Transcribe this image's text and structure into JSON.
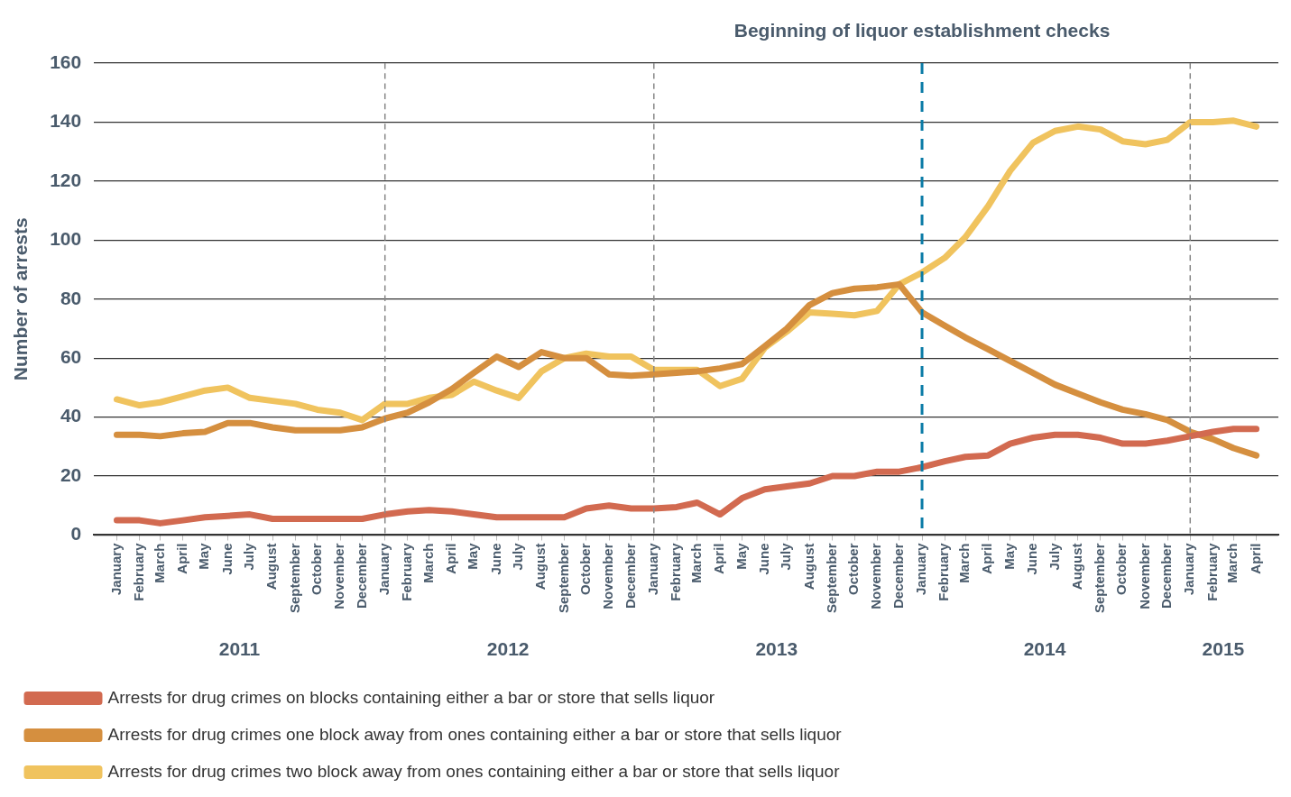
{
  "chart_data": {
    "type": "line",
    "ylabel": "Number of arrests",
    "x": [
      "2011-01",
      "2011-02",
      "2011-03",
      "2011-04",
      "2011-05",
      "2011-06",
      "2011-07",
      "2011-08",
      "2011-09",
      "2011-10",
      "2011-11",
      "2011-12",
      "2012-01",
      "2012-02",
      "2012-03",
      "2012-04",
      "2012-05",
      "2012-06",
      "2012-07",
      "2012-08",
      "2012-09",
      "2012-10",
      "2012-11",
      "2012-12",
      "2013-01",
      "2013-02",
      "2013-03",
      "2013-04",
      "2013-05",
      "2013-06",
      "2013-07",
      "2013-08",
      "2013-09",
      "2013-10",
      "2013-11",
      "2013-12",
      "2014-01",
      "2014-02",
      "2014-03",
      "2014-04",
      "2014-05",
      "2014-06",
      "2014-07",
      "2014-08",
      "2014-09",
      "2014-10",
      "2014-11",
      "2014-12",
      "2015-01",
      "2015-02",
      "2015-03",
      "2015-04"
    ],
    "series": [
      {
        "name": "Arrests for drug crimes on blocks containing either a bar or store that sells liquor",
        "color": "#d26a50",
        "values": [
          5,
          5,
          4,
          5,
          6,
          6.5,
          7,
          5.5,
          5.5,
          5.5,
          5.5,
          5.5,
          7,
          8,
          8.5,
          8,
          7,
          6,
          6,
          6,
          6,
          9,
          10,
          9,
          9,
          9.5,
          11,
          7,
          12.5,
          15.5,
          16.5,
          17.5,
          20,
          20,
          21.5,
          21.5,
          23,
          25,
          26.5,
          27,
          31,
          33,
          34,
          34,
          33,
          31,
          31,
          32,
          33.5,
          35,
          36,
          36
        ]
      },
      {
        "name": "Arrests for drug crimes one block away from ones containing either a bar or store that sells liquor",
        "color": "#d58f3f",
        "values": [
          34,
          34,
          33.5,
          34.5,
          35,
          38,
          38,
          36.5,
          35.5,
          35.5,
          35.5,
          36.5,
          39.5,
          41.5,
          45,
          49.5,
          55,
          60.5,
          57,
          62,
          60,
          60,
          54.5,
          54,
          54.5,
          55,
          55.5,
          56.5,
          58,
          64,
          70,
          78,
          82,
          83.5,
          84,
          85,
          75.5,
          71,
          67,
          63,
          59,
          55,
          51,
          48,
          45,
          42.5,
          41,
          39,
          35,
          32.5,
          29.5,
          27
        ]
      },
      {
        "name": "Arrests for drug crimes two block away from ones containing either a bar or store that sells liquor",
        "color": "#f0c35e",
        "values": [
          46,
          44,
          45,
          47,
          49,
          50,
          46.5,
          45.5,
          44.5,
          42.5,
          41.5,
          39,
          44.5,
          44.5,
          46.5,
          47.5,
          52,
          49,
          46.5,
          55.5,
          60,
          61.5,
          60.5,
          60.5,
          56,
          56,
          56,
          50.5,
          53,
          63.5,
          69,
          75.5,
          75,
          74.5,
          76,
          85,
          89,
          94,
          101,
          111.5,
          123.5,
          133,
          137,
          138.5,
          137.5,
          133.5,
          132.5,
          134,
          140,
          140,
          140.5,
          138.5
        ]
      }
    ],
    "xlim": [
      "2010-12",
      "2015-05"
    ],
    "xticks": [
      {
        "value": "2011-01",
        "label": "January"
      },
      {
        "value": "2011-02",
        "label": "February"
      },
      {
        "value": "2011-03",
        "label": "March"
      },
      {
        "value": "2011-04",
        "label": "April"
      },
      {
        "value": "2011-05",
        "label": "May"
      },
      {
        "value": "2011-06",
        "label": "June"
      },
      {
        "value": "2011-07",
        "label": "July"
      },
      {
        "value": "2011-08",
        "label": "August"
      },
      {
        "value": "2011-09",
        "label": "September"
      },
      {
        "value": "2011-10",
        "label": "October"
      },
      {
        "value": "2011-11",
        "label": "November"
      },
      {
        "value": "2011-12",
        "label": "December"
      },
      {
        "value": "2012-01",
        "label": "January"
      },
      {
        "value": "2012-02",
        "label": "February"
      },
      {
        "value": "2012-03",
        "label": "March"
      },
      {
        "value": "2012-04",
        "label": "April"
      },
      {
        "value": "2012-05",
        "label": "May"
      },
      {
        "value": "2012-06",
        "label": "June"
      },
      {
        "value": "2012-07",
        "label": "July"
      },
      {
        "value": "2012-08",
        "label": "August"
      },
      {
        "value": "2012-09",
        "label": "September"
      },
      {
        "value": "2012-10",
        "label": "October"
      },
      {
        "value": "2012-11",
        "label": "November"
      },
      {
        "value": "2012-12",
        "label": "December"
      },
      {
        "value": "2013-01",
        "label": "January"
      },
      {
        "value": "2013-02",
        "label": "February"
      },
      {
        "value": "2013-03",
        "label": "March"
      },
      {
        "value": "2013-04",
        "label": "April"
      },
      {
        "value": "2013-05",
        "label": "May"
      },
      {
        "value": "2013-06",
        "label": "June"
      },
      {
        "value": "2013-07",
        "label": "July"
      },
      {
        "value": "2013-08",
        "label": "August"
      },
      {
        "value": "2013-09",
        "label": "September"
      },
      {
        "value": "2013-10",
        "label": "October"
      },
      {
        "value": "2013-11",
        "label": "November"
      },
      {
        "value": "2013-12",
        "label": "December"
      },
      {
        "value": "2014-01",
        "label": "January"
      },
      {
        "value": "2014-02",
        "label": "February"
      },
      {
        "value": "2014-03",
        "label": "March"
      },
      {
        "value": "2014-04",
        "label": "April"
      },
      {
        "value": "2014-05",
        "label": "May"
      },
      {
        "value": "2014-06",
        "label": "June"
      },
      {
        "value": "2014-07",
        "label": "July"
      },
      {
        "value": "2014-08",
        "label": "August"
      },
      {
        "value": "2014-09",
        "label": "September"
      },
      {
        "value": "2014-10",
        "label": "October"
      },
      {
        "value": "2014-11",
        "label": "November"
      },
      {
        "value": "2014-12",
        "label": "December"
      },
      {
        "value": "2015-01",
        "label": "January"
      },
      {
        "value": "2015-02",
        "label": "February"
      },
      {
        "value": "2015-03",
        "label": "March"
      },
      {
        "value": "2015-04",
        "label": "April"
      }
    ],
    "ylim": [
      0,
      160
    ],
    "yticks": [
      0,
      20,
      40,
      60,
      80,
      100,
      120,
      140,
      160
    ],
    "grid": "y",
    "legend": "bottom left",
    "marker": "none",
    "line_style": "solid",
    "ref_lines": [
      {
        "axis": "x",
        "value": "2012-01",
        "color": "#888888",
        "line_style": "dashed"
      },
      {
        "axis": "x",
        "value": "2013-01",
        "color": "#888888",
        "line_style": "dashed"
      },
      {
        "axis": "x",
        "value": "2015-01",
        "color": "#888888",
        "line_style": "dashed"
      },
      {
        "axis": "x",
        "value": "2014-01",
        "label": "Beginning of liquor establishment checks",
        "color": "#0a7ba6",
        "line_style": "dashed"
      }
    ],
    "annotations": [
      "2011",
      "2012",
      "2013",
      "2014",
      "2015"
    ]
  }
}
